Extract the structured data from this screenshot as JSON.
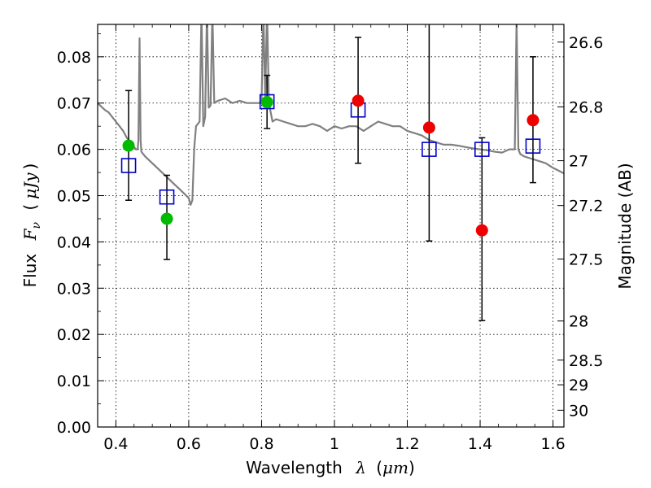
{
  "chart_data": {
    "type": "scatter",
    "xlabel_text": "Wavelength",
    "xlabel_symbol": "λ",
    "xlabel_unit_open": "(",
    "xlabel_unit": "μm",
    "xlabel_unit_close": ")",
    "ylabel_text": "Flux",
    "ylabel_symbol": "F",
    "ylabel_subscript": "ν",
    "ylabel_unit_open": "(",
    "ylabel_unit": "μJy",
    "ylabel_unit_close": ")",
    "y2label": "Magnitude (AB)",
    "xlim": [
      0.35,
      1.63
    ],
    "ylim": [
      0.0,
      0.087
    ],
    "grid": true,
    "x_ticks": [
      {
        "value": 0.4,
        "label": "0.4"
      },
      {
        "value": 0.6,
        "label": "0.6"
      },
      {
        "value": 0.8,
        "label": "0.8"
      },
      {
        "value": 1.0,
        "label": "1"
      },
      {
        "value": 1.2,
        "label": "1.2"
      },
      {
        "value": 1.4,
        "label": "1.4"
      },
      {
        "value": 1.6,
        "label": "1.6"
      }
    ],
    "y_ticks": [
      {
        "value": 0.0,
        "label": "0.00"
      },
      {
        "value": 0.01,
        "label": "0.01"
      },
      {
        "value": 0.02,
        "label": "0.02"
      },
      {
        "value": 0.03,
        "label": "0.03"
      },
      {
        "value": 0.04,
        "label": "0.04"
      },
      {
        "value": 0.05,
        "label": "0.05"
      },
      {
        "value": 0.06,
        "label": "0.06"
      },
      {
        "value": 0.07,
        "label": "0.07"
      },
      {
        "value": 0.08,
        "label": "0.08"
      }
    ],
    "y2_ticks": [
      {
        "mag": 26.6,
        "label": "26.6"
      },
      {
        "mag": 26.8,
        "label": "26.8"
      },
      {
        "mag": 27.0,
        "label": "27"
      },
      {
        "mag": 27.2,
        "label": "27.2"
      },
      {
        "mag": 27.5,
        "label": "27.5"
      },
      {
        "mag": 28.0,
        "label": "28"
      },
      {
        "mag": 28.5,
        "label": "28.5"
      },
      {
        "mag": 29.0,
        "label": "29"
      },
      {
        "mag": 30.0,
        "label": "30"
      }
    ],
    "model_spectrum": {
      "color": "#808080",
      "x": [
        0.35,
        0.37,
        0.38,
        0.39,
        0.4,
        0.41,
        0.42,
        0.43,
        0.44,
        0.45,
        0.455,
        0.46,
        0.462,
        0.465,
        0.468,
        0.47,
        0.48,
        0.5,
        0.52,
        0.54,
        0.56,
        0.58,
        0.6,
        0.605,
        0.61,
        0.615,
        0.62,
        0.63,
        0.635,
        0.64,
        0.645,
        0.65,
        0.655,
        0.66,
        0.665,
        0.67,
        0.68,
        0.7,
        0.72,
        0.74,
        0.76,
        0.78,
        0.8,
        0.805,
        0.81,
        0.815,
        0.82,
        0.83,
        0.84,
        0.86,
        0.88,
        0.9,
        0.92,
        0.94,
        0.96,
        0.98,
        1.0,
        1.02,
        1.04,
        1.06,
        1.08,
        1.1,
        1.12,
        1.14,
        1.16,
        1.18,
        1.2,
        1.22,
        1.24,
        1.26,
        1.28,
        1.3,
        1.32,
        1.34,
        1.36,
        1.38,
        1.4,
        1.42,
        1.44,
        1.46,
        1.48,
        1.495,
        1.5,
        1.505,
        1.51,
        1.52,
        1.54,
        1.56,
        1.58,
        1.6,
        1.62,
        1.63
      ],
      "y": [
        0.07,
        0.0685,
        0.068,
        0.067,
        0.066,
        0.065,
        0.064,
        0.0625,
        0.0615,
        0.0605,
        0.06,
        0.06,
        0.062,
        0.084,
        0.062,
        0.0595,
        0.0585,
        0.057,
        0.0555,
        0.054,
        0.0525,
        0.051,
        0.0495,
        0.048,
        0.049,
        0.06,
        0.065,
        0.066,
        0.09,
        0.065,
        0.067,
        0.09,
        0.069,
        0.0695,
        0.09,
        0.07,
        0.0705,
        0.071,
        0.07,
        0.0705,
        0.07,
        0.07,
        0.07,
        0.09,
        0.071,
        0.09,
        0.07,
        0.066,
        0.0665,
        0.066,
        0.0655,
        0.065,
        0.065,
        0.0655,
        0.065,
        0.064,
        0.065,
        0.0645,
        0.065,
        0.065,
        0.064,
        0.065,
        0.066,
        0.0655,
        0.065,
        0.065,
        0.064,
        0.0635,
        0.063,
        0.062,
        0.0615,
        0.061,
        0.061,
        0.0608,
        0.0605,
        0.0602,
        0.06,
        0.0598,
        0.0595,
        0.0593,
        0.06,
        0.06,
        0.088,
        0.06,
        0.059,
        0.0585,
        0.058,
        0.0575,
        0.057,
        0.056,
        0.0552,
        0.0548
      ]
    },
    "model_photometry": {
      "color": "#0000cc",
      "x": [
        0.435,
        0.54,
        0.815,
        1.065,
        1.26,
        1.405,
        1.545
      ],
      "y": [
        0.0565,
        0.0497,
        0.0703,
        0.0685,
        0.06,
        0.06,
        0.0607
      ]
    },
    "observed_optical": {
      "color": "#00bb00",
      "x": [
        0.435,
        0.54,
        0.815
      ],
      "y": [
        0.0608,
        0.045,
        0.0702
      ],
      "yerr_low": [
        0.049,
        0.0362,
        0.0645
      ],
      "yerr_high": [
        0.0727,
        0.0544,
        0.076
      ]
    },
    "observed_nir": {
      "color": "#ee0000",
      "x": [
        1.065,
        1.26,
        1.405,
        1.545
      ],
      "y": [
        0.0705,
        0.0647,
        0.0425,
        0.0663
      ],
      "yerr_low": [
        0.057,
        0.0402,
        0.023,
        0.0528
      ],
      "yerr_high": [
        0.0842,
        0.09,
        0.0625,
        0.08
      ]
    }
  }
}
